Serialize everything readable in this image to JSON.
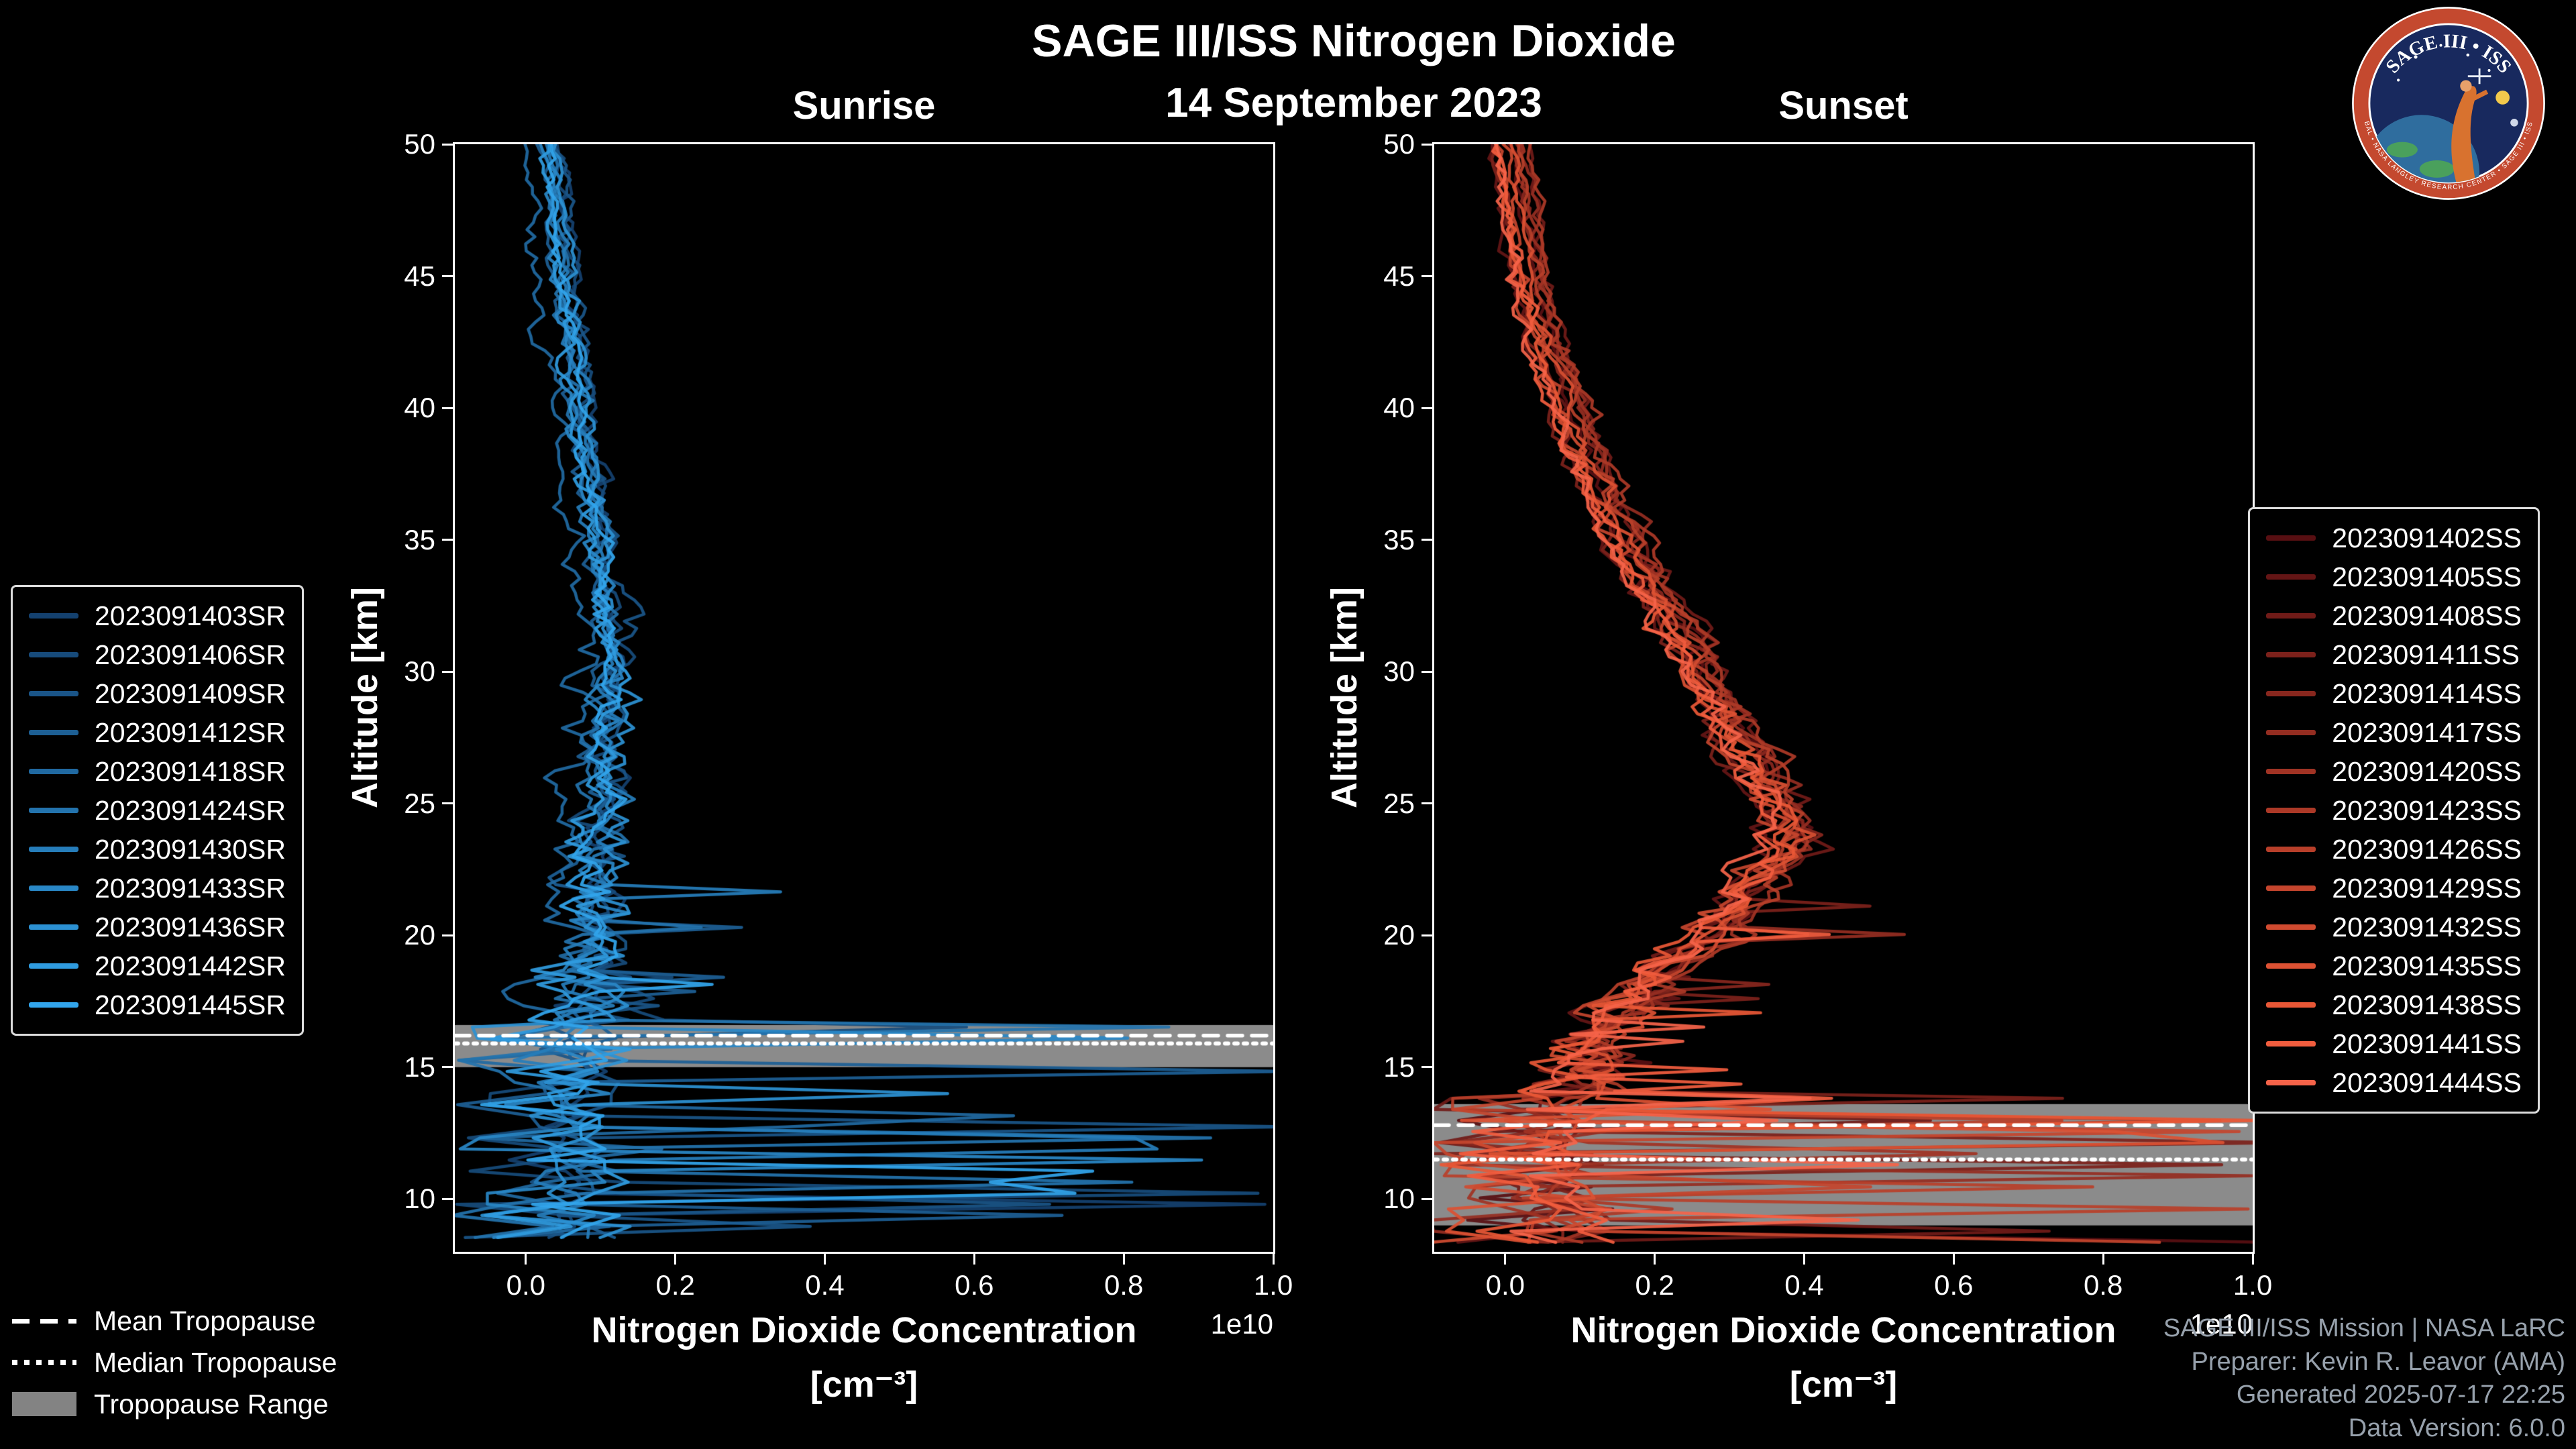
{
  "figure": {
    "title": "SAGE III/ISS Nitrogen Dioxide",
    "date": "14 September 2023",
    "background": "#000000"
  },
  "logo": {
    "top_text": "SAGE III • ISS",
    "ring_text": "BAL • NASA LANGLEY RESEARCH CENTER • SAGE III • ISS",
    "ring_color": "#c4492f",
    "inner_color": "#18295e"
  },
  "tropopause_legend": {
    "items": [
      {
        "label": "Mean Tropopause",
        "style": "dashed"
      },
      {
        "label": "Median Tropopause",
        "style": "dotted"
      },
      {
        "label": "Tropopause Range",
        "style": "patch",
        "color": "#9a9a9a"
      }
    ]
  },
  "credits": {
    "line1": "SAGE III/ISS Mission | NASA LaRC",
    "line2": "Preparer: Kevin R. Leavor (AMA)",
    "line3": "Generated 2025-07-17 22:25",
    "line4": "Data Version: 6.0.0"
  },
  "chart_data": [
    {
      "type": "line",
      "title": "Sunrise",
      "ylabel": "Altitude [km]",
      "xlabel": "Nitrogen Dioxide Concentration",
      "xlabel_units": "[cm⁻³]",
      "x_offset_label": "1e10",
      "xlim": [
        -0.095,
        1.0
      ],
      "ylim": [
        8,
        50
      ],
      "x_ticks": [
        0.0,
        0.2,
        0.4,
        0.6,
        0.8,
        1.0
      ],
      "y_ticks": [
        10,
        15,
        20,
        25,
        30,
        35,
        40,
        45,
        50
      ],
      "grid": false,
      "legend_position": "outside-left",
      "line_color_theme": "blues",
      "tropopause": {
        "mean_km": 16.2,
        "median_km": 15.9,
        "range_km": [
          15.0,
          16.6
        ]
      },
      "series": [
        {
          "name": "2023091403SR",
          "color": "#14416f"
        },
        {
          "name": "2023091406SR",
          "color": "#174b7b"
        },
        {
          "name": "2023091409SR",
          "color": "#1a5588"
        },
        {
          "name": "2023091412SR",
          "color": "#1d5f94"
        },
        {
          "name": "2023091418SR",
          "color": "#2069a1"
        },
        {
          "name": "2023091424SR",
          "color": "#2373ad"
        },
        {
          "name": "2023091430SR",
          "color": "#267dba"
        },
        {
          "name": "2023091433SR",
          "color": "#2987c6"
        },
        {
          "name": "2023091436SR",
          "color": "#2c91d3"
        },
        {
          "name": "2023091442SR",
          "color": "#2f9bdf"
        },
        {
          "name": "2023091445SR",
          "color": "#32a5ec"
        }
      ],
      "base_profile": [
        [
          8.5,
          0.1
        ],
        [
          10,
          0.1
        ],
        [
          12,
          0.1
        ],
        [
          14,
          0.12
        ],
        [
          16,
          0.1
        ],
        [
          17,
          0.09
        ],
        [
          19,
          0.08
        ],
        [
          22,
          0.08
        ],
        [
          25,
          0.085
        ],
        [
          28,
          0.1
        ],
        [
          31,
          0.105
        ],
        [
          34,
          0.09
        ],
        [
          38,
          0.07
        ],
        [
          42,
          0.05
        ],
        [
          46,
          0.035
        ],
        [
          50,
          0.02
        ]
      ],
      "noise_profile": [
        [
          16.6,
          0.12
        ],
        [
          18,
          0.09
        ],
        [
          20,
          0.055
        ],
        [
          24,
          0.04
        ],
        [
          30,
          0.03
        ],
        [
          40,
          0.02
        ],
        [
          50,
          0.015
        ]
      ],
      "spike_below_km": 16.6,
      "spike_max": 1.05
    },
    {
      "type": "line",
      "title": "Sunset",
      "ylabel": "Altitude [km]",
      "xlabel": "Nitrogen Dioxide Concentration",
      "xlabel_units": "[cm⁻³]",
      "x_offset_label": "1e10",
      "xlim": [
        -0.095,
        1.0
      ],
      "ylim": [
        8,
        50
      ],
      "x_ticks": [
        0.0,
        0.2,
        0.4,
        0.6,
        0.8,
        1.0
      ],
      "y_ticks": [
        10,
        15,
        20,
        25,
        30,
        35,
        40,
        45,
        50
      ],
      "grid": false,
      "legend_position": "outside-right",
      "line_color_theme": "reds",
      "tropopause": {
        "mean_km": 12.8,
        "median_km": 11.5,
        "range_km": [
          9.0,
          13.6
        ]
      },
      "series": [
        {
          "name": "2023091402SS",
          "color": "#580f12"
        },
        {
          "name": "2023091405SS",
          "color": "#641515"
        },
        {
          "name": "2023091408SS",
          "color": "#701b18"
        },
        {
          "name": "2023091411SS",
          "color": "#7c211b"
        },
        {
          "name": "2023091414SS",
          "color": "#88271e"
        },
        {
          "name": "2023091417SS",
          "color": "#942d21"
        },
        {
          "name": "2023091420SS",
          "color": "#a03324"
        },
        {
          "name": "2023091423SS",
          "color": "#ac3927"
        },
        {
          "name": "2023091426SS",
          "color": "#b83f2a"
        },
        {
          "name": "2023091429SS",
          "color": "#c4452d"
        },
        {
          "name": "2023091432SS",
          "color": "#d04b30"
        },
        {
          "name": "2023091435SS",
          "color": "#dc5133"
        },
        {
          "name": "2023091438SS",
          "color": "#e85736"
        },
        {
          "name": "2023091441SS",
          "color": "#f15d3e"
        },
        {
          "name": "2023091444SS",
          "color": "#f56349"
        }
      ],
      "base_profile": [
        [
          8.5,
          0.1
        ],
        [
          10,
          0.1
        ],
        [
          12,
          0.1
        ],
        [
          14,
          0.09
        ],
        [
          16,
          0.11
        ],
        [
          18,
          0.17
        ],
        [
          20,
          0.27
        ],
        [
          22,
          0.34
        ],
        [
          23.5,
          0.38
        ],
        [
          25,
          0.36
        ],
        [
          27,
          0.32
        ],
        [
          29,
          0.28
        ],
        [
          32,
          0.22
        ],
        [
          35,
          0.16
        ],
        [
          38,
          0.11
        ],
        [
          41,
          0.07
        ],
        [
          44,
          0.04
        ],
        [
          47,
          0.02
        ],
        [
          50,
          0.005
        ]
      ],
      "noise_profile": [
        [
          14,
          0.1
        ],
        [
          16,
          0.07
        ],
        [
          20,
          0.05
        ],
        [
          25,
          0.04
        ],
        [
          30,
          0.03
        ],
        [
          40,
          0.02
        ],
        [
          50,
          0.012
        ]
      ],
      "spike_below_km": 14.0,
      "spike_max": 1.05
    }
  ]
}
